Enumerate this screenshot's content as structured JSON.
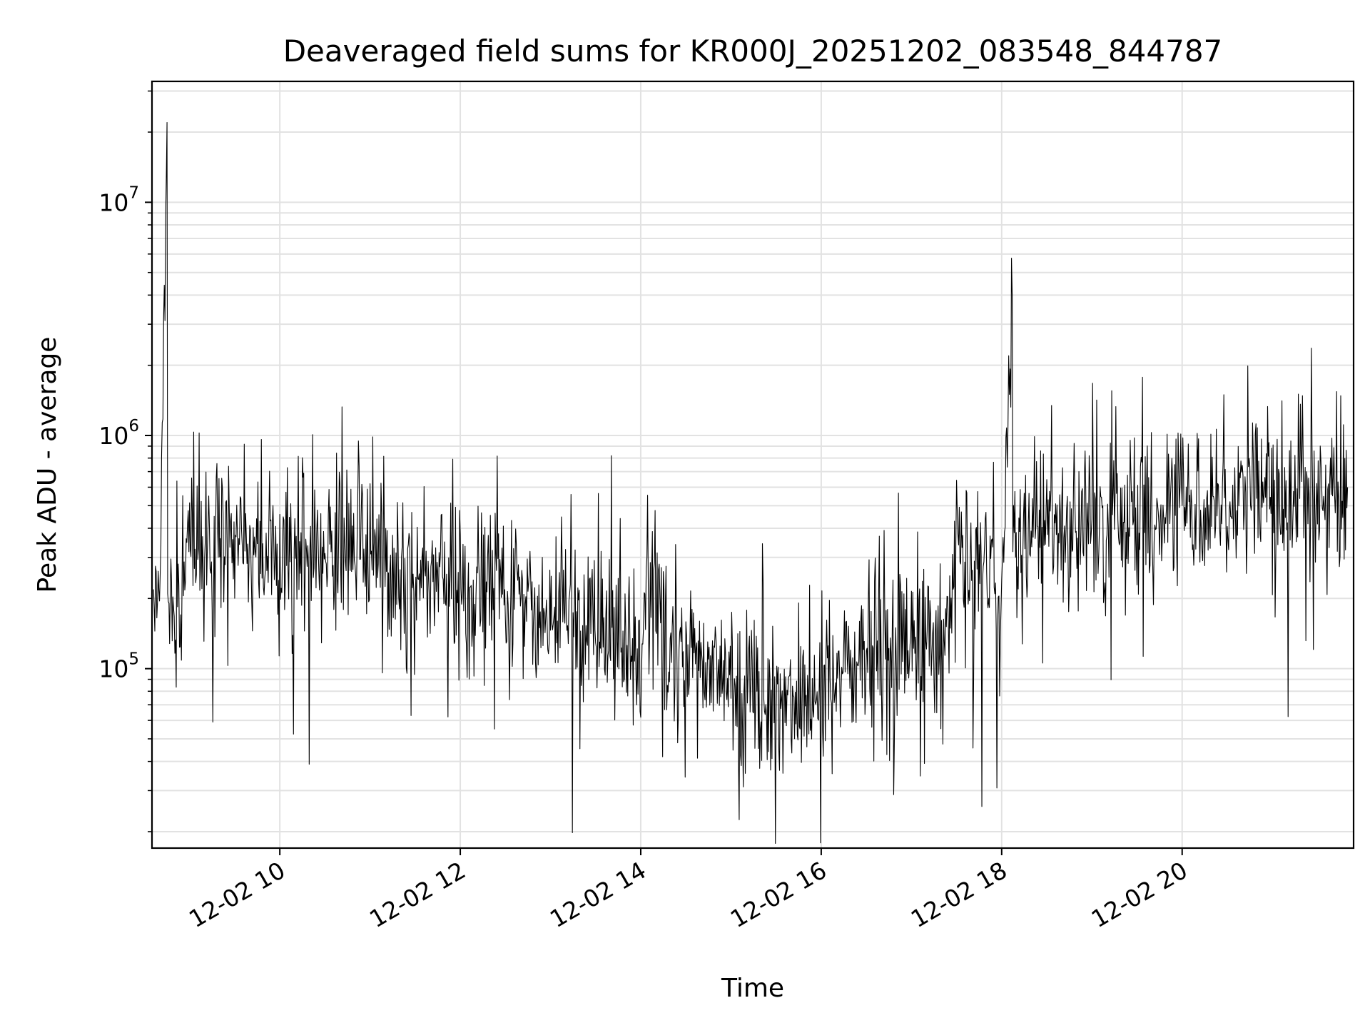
{
  "chart_data": {
    "type": "line",
    "title": "Deaveraged field sums for KR000J_20251202_083548_844787",
    "xlabel": "Time",
    "ylabel": "Peak ADU - average",
    "yscale": "log",
    "grid": true,
    "x_tick_labels": [
      "12-02 10",
      "12-02 12",
      "12-02 14",
      "12-02 16",
      "12-02 18",
      "12-02 20"
    ],
    "y_tick_labels": [
      {
        "base": "10",
        "exp": "5"
      },
      {
        "base": "10",
        "exp": "6"
      },
      {
        "base": "10",
        "exp": "7"
      }
    ],
    "x_range": [
      "2025-12-02 08:35",
      "2025-12-02 21:54"
    ],
    "y_range": [
      17000,
      33000000
    ],
    "series_color": "#000000",
    "series": [
      {
        "x": [
          "2025-12-02 08:36",
          "2025-12-02 08:40",
          "2025-12-02 08:45",
          "2025-12-02 08:48",
          "2025-12-02 08:52",
          "2025-12-02 08:55",
          "2025-12-02 09:00",
          "2025-12-02 09:05",
          "2025-12-02 09:10",
          "2025-12-02 09:20",
          "2025-12-02 09:30",
          "2025-12-02 09:40",
          "2025-12-02 09:50",
          "2025-12-02 10:00",
          "2025-12-02 10:15",
          "2025-12-02 10:30",
          "2025-12-02 10:45",
          "2025-12-02 11:00",
          "2025-12-02 11:15",
          "2025-12-02 11:30",
          "2025-12-02 11:45",
          "2025-12-02 12:00",
          "2025-12-02 12:15",
          "2025-12-02 12:30",
          "2025-12-02 12:45",
          "2025-12-02 13:00",
          "2025-12-02 13:15",
          "2025-12-02 13:30",
          "2025-12-02 13:45",
          "2025-12-02 14:00",
          "2025-12-02 14:05",
          "2025-12-02 14:15",
          "2025-12-02 14:30",
          "2025-12-02 14:45",
          "2025-12-02 15:00",
          "2025-12-02 15:15",
          "2025-12-02 15:30",
          "2025-12-02 15:45",
          "2025-12-02 16:00",
          "2025-12-02 16:15",
          "2025-12-02 16:30",
          "2025-12-02 16:45",
          "2025-12-02 17:00",
          "2025-12-02 17:15",
          "2025-12-02 17:25",
          "2025-12-02 17:30",
          "2025-12-02 17:45",
          "2025-12-02 18:00",
          "2025-12-02 18:07",
          "2025-12-02 18:15",
          "2025-12-02 18:30",
          "2025-12-02 18:45",
          "2025-12-02 19:00",
          "2025-12-02 19:15",
          "2025-12-02 19:30",
          "2025-12-02 19:45",
          "2025-12-02 20:00",
          "2025-12-02 20:15",
          "2025-12-02 20:30",
          "2025-12-02 20:45",
          "2025-12-02 21:00",
          "2025-12-02 21:15",
          "2025-12-02 21:30",
          "2025-12-02 21:40",
          "2025-12-02 21:50"
        ],
        "y": [
          250000,
          200000,
          22000000,
          180000,
          150000,
          220000,
          400000,
          350000,
          300000,
          320000,
          350000,
          330000,
          310000,
          300000,
          310000,
          320000,
          330000,
          350000,
          280000,
          250000,
          240000,
          230000,
          220000,
          210000,
          180000,
          160000,
          150000,
          140000,
          130000,
          120000,
          250000,
          150000,
          110000,
          100000,
          90000,
          80000,
          75000,
          70000,
          80000,
          100000,
          110000,
          120000,
          130000,
          140000,
          150000,
          350000,
          250000,
          200000,
          4000000,
          400000,
          380000,
          400000,
          420000,
          440000,
          450000,
          480000,
          500000,
          520000,
          550000,
          560000,
          550000,
          520000,
          500000,
          550000,
          600000
        ]
      }
    ]
  }
}
